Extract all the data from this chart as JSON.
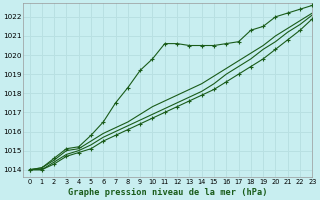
{
  "title": "Graphe pression niveau de la mer (hPa)",
  "background_color": "#c8eef0",
  "grid_color": "#b8e0e2",
  "line_color": "#1a5c1a",
  "xlim": [
    -0.5,
    23
  ],
  "ylim": [
    1013.6,
    1022.7
  ],
  "xticks": [
    0,
    1,
    2,
    3,
    4,
    5,
    6,
    7,
    8,
    9,
    10,
    11,
    12,
    13,
    14,
    15,
    16,
    17,
    18,
    19,
    20,
    21,
    22,
    23
  ],
  "yticks": [
    1014,
    1015,
    1016,
    1017,
    1018,
    1019,
    1020,
    1021,
    1022
  ],
  "series": [
    {
      "x": [
        0,
        1,
        2,
        3,
        4,
        5,
        6,
        7,
        8,
        9,
        10,
        11,
        12,
        13,
        14,
        15,
        16,
        17,
        18,
        19,
        20,
        21,
        22,
        23
      ],
      "y": [
        1014.0,
        1014.1,
        1014.6,
        1015.1,
        1015.2,
        1015.8,
        1016.5,
        1017.5,
        1018.3,
        1019.2,
        1019.8,
        1020.6,
        1020.6,
        1020.5,
        1020.5,
        1020.5,
        1020.6,
        1020.7,
        1021.3,
        1021.5,
        1022.0,
        1022.2,
        1022.4,
        1022.6
      ],
      "marker": "+"
    },
    {
      "x": [
        0,
        1,
        2,
        3,
        4,
        5,
        6,
        7,
        8,
        9,
        10,
        11,
        12,
        13,
        14,
        15,
        16,
        17,
        18,
        19,
        20,
        21,
        22,
        23
      ],
      "y": [
        1014.0,
        1014.1,
        1014.5,
        1015.0,
        1015.1,
        1015.5,
        1015.9,
        1016.2,
        1016.5,
        1016.9,
        1017.3,
        1017.6,
        1017.9,
        1018.2,
        1018.5,
        1018.9,
        1019.3,
        1019.7,
        1020.1,
        1020.5,
        1021.0,
        1021.4,
        1021.8,
        1022.2
      ],
      "marker": null
    },
    {
      "x": [
        0,
        1,
        2,
        3,
        4,
        5,
        6,
        7,
        8,
        9,
        10,
        11,
        12,
        13,
        14,
        15,
        16,
        17,
        18,
        19,
        20,
        21,
        22,
        23
      ],
      "y": [
        1014.0,
        1014.0,
        1014.4,
        1014.8,
        1015.0,
        1015.3,
        1015.7,
        1016.0,
        1016.3,
        1016.6,
        1016.9,
        1017.2,
        1017.5,
        1017.8,
        1018.1,
        1018.5,
        1019.0,
        1019.4,
        1019.8,
        1020.3,
        1020.7,
        1021.2,
        1021.6,
        1022.1
      ],
      "marker": null
    },
    {
      "x": [
        0,
        1,
        2,
        3,
        4,
        5,
        6,
        7,
        8,
        9,
        10,
        11,
        12,
        13,
        14,
        15,
        16,
        17,
        18,
        19,
        20,
        21,
        22,
        23
      ],
      "y": [
        1014.0,
        1014.0,
        1014.3,
        1014.7,
        1014.9,
        1015.1,
        1015.5,
        1015.8,
        1016.1,
        1016.4,
        1016.7,
        1017.0,
        1017.3,
        1017.6,
        1017.9,
        1018.2,
        1018.6,
        1019.0,
        1019.4,
        1019.8,
        1020.3,
        1020.8,
        1021.3,
        1021.9
      ],
      "marker": "+"
    }
  ]
}
